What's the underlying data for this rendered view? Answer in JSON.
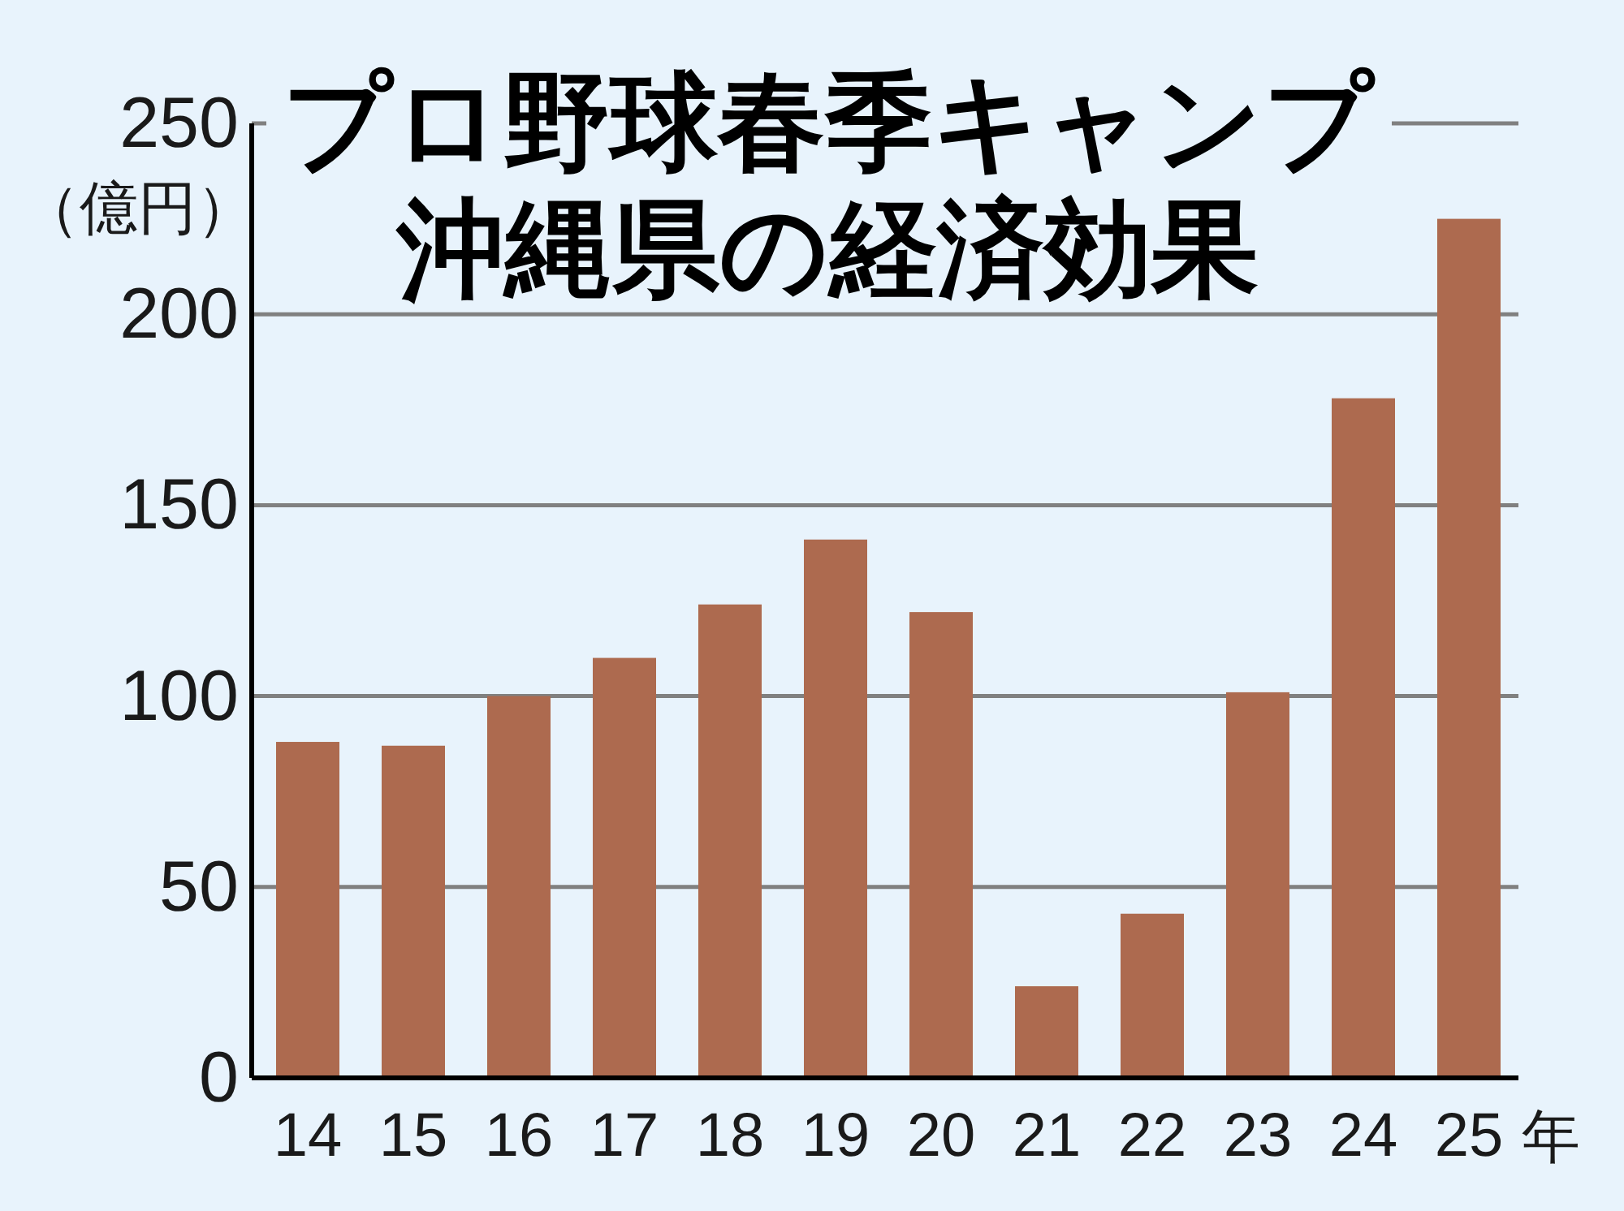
{
  "chart_data": {
    "type": "bar",
    "title": "プロ野球春季キャンプ",
    "subtitle": "沖縄県の経済効果",
    "ylabel": "（億円）",
    "xlabel": "年",
    "categories": [
      "14",
      "15",
      "16",
      "17",
      "18",
      "19",
      "20",
      "21",
      "22",
      "23",
      "24",
      "25"
    ],
    "values": [
      88,
      87,
      100,
      110,
      124,
      141,
      122,
      24,
      43,
      101,
      178,
      225
    ],
    "color": "#ad6a4f",
    "ylim": [
      0,
      250
    ],
    "yticks": [
      0,
      50,
      100,
      150,
      200,
      250
    ],
    "grid": "y"
  }
}
